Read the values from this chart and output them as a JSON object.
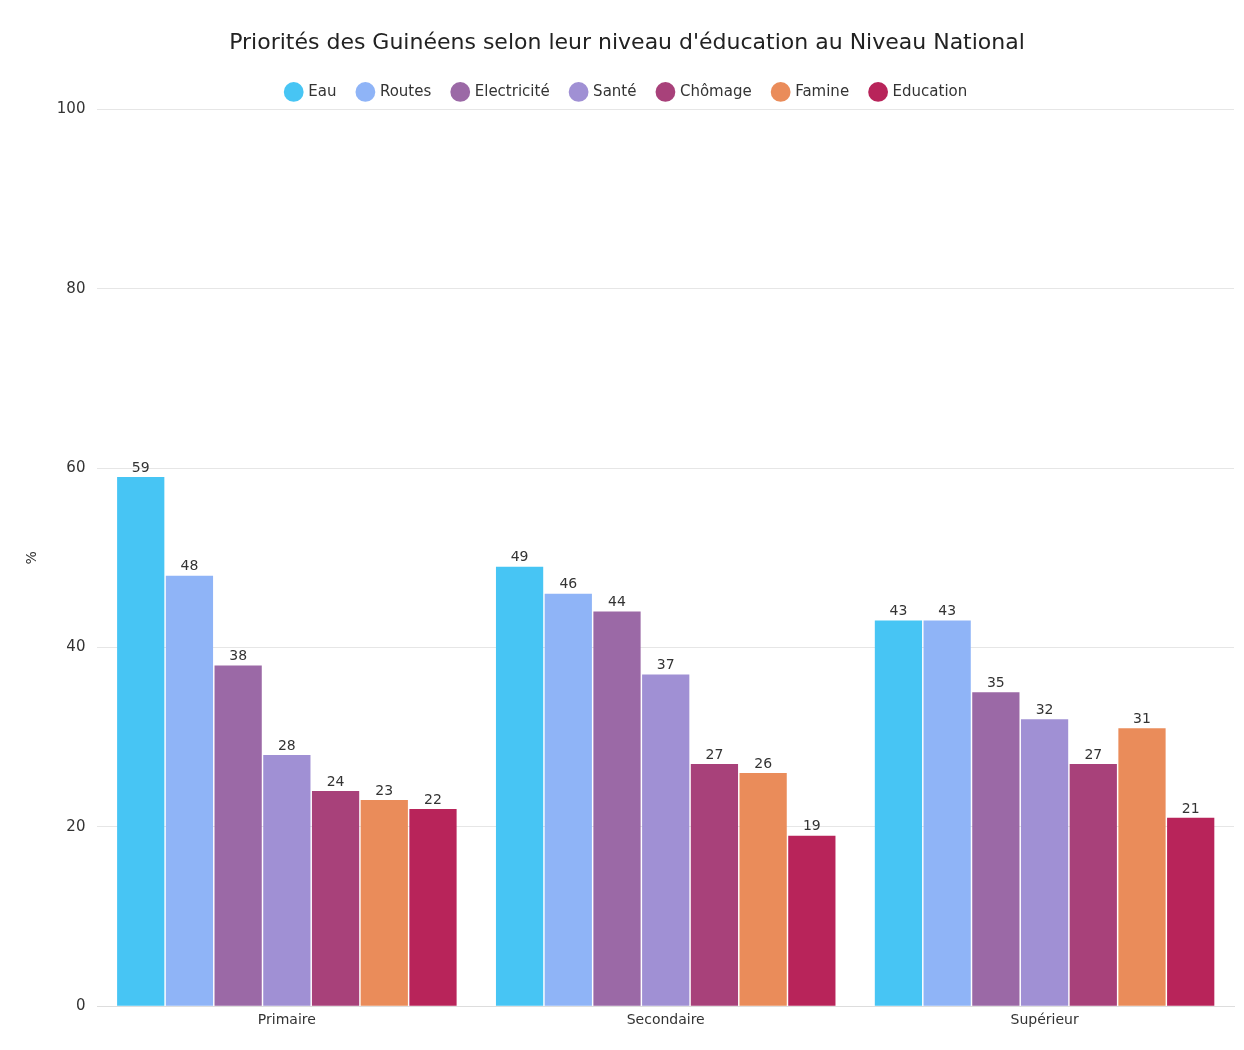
{
  "chart_data": {
    "type": "bar",
    "title": "Priorités des Guinéens selon leur niveau d'éducation au Niveau National",
    "ylabel": "%",
    "categories": [
      "Primaire",
      "Secondaire",
      "Supérieur"
    ],
    "series": [
      {
        "name": "Eau",
        "color": "#47c5f4",
        "values": [
          59,
          49,
          43
        ]
      },
      {
        "name": "Routes",
        "color": "#8fb4f7",
        "values": [
          48,
          46,
          43
        ]
      },
      {
        "name": "Electricité",
        "color": "#9b69a6",
        "values": [
          38,
          44,
          35
        ]
      },
      {
        "name": "Santé",
        "color": "#a090d4",
        "values": [
          28,
          37,
          32
        ]
      },
      {
        "name": "Chômage",
        "color": "#a8417a",
        "values": [
          24,
          27,
          27
        ]
      },
      {
        "name": "Famine",
        "color": "#ea8c5a",
        "values": [
          23,
          26,
          31
        ]
      },
      {
        "name": "Education",
        "color": "#b8245a",
        "values": [
          22,
          19,
          21
        ]
      }
    ],
    "ylim": [
      0,
      100
    ],
    "yticks": [
      0,
      20,
      40,
      60,
      80,
      100
    ],
    "grid": "y",
    "legend": "top",
    "data_labels": true
  }
}
